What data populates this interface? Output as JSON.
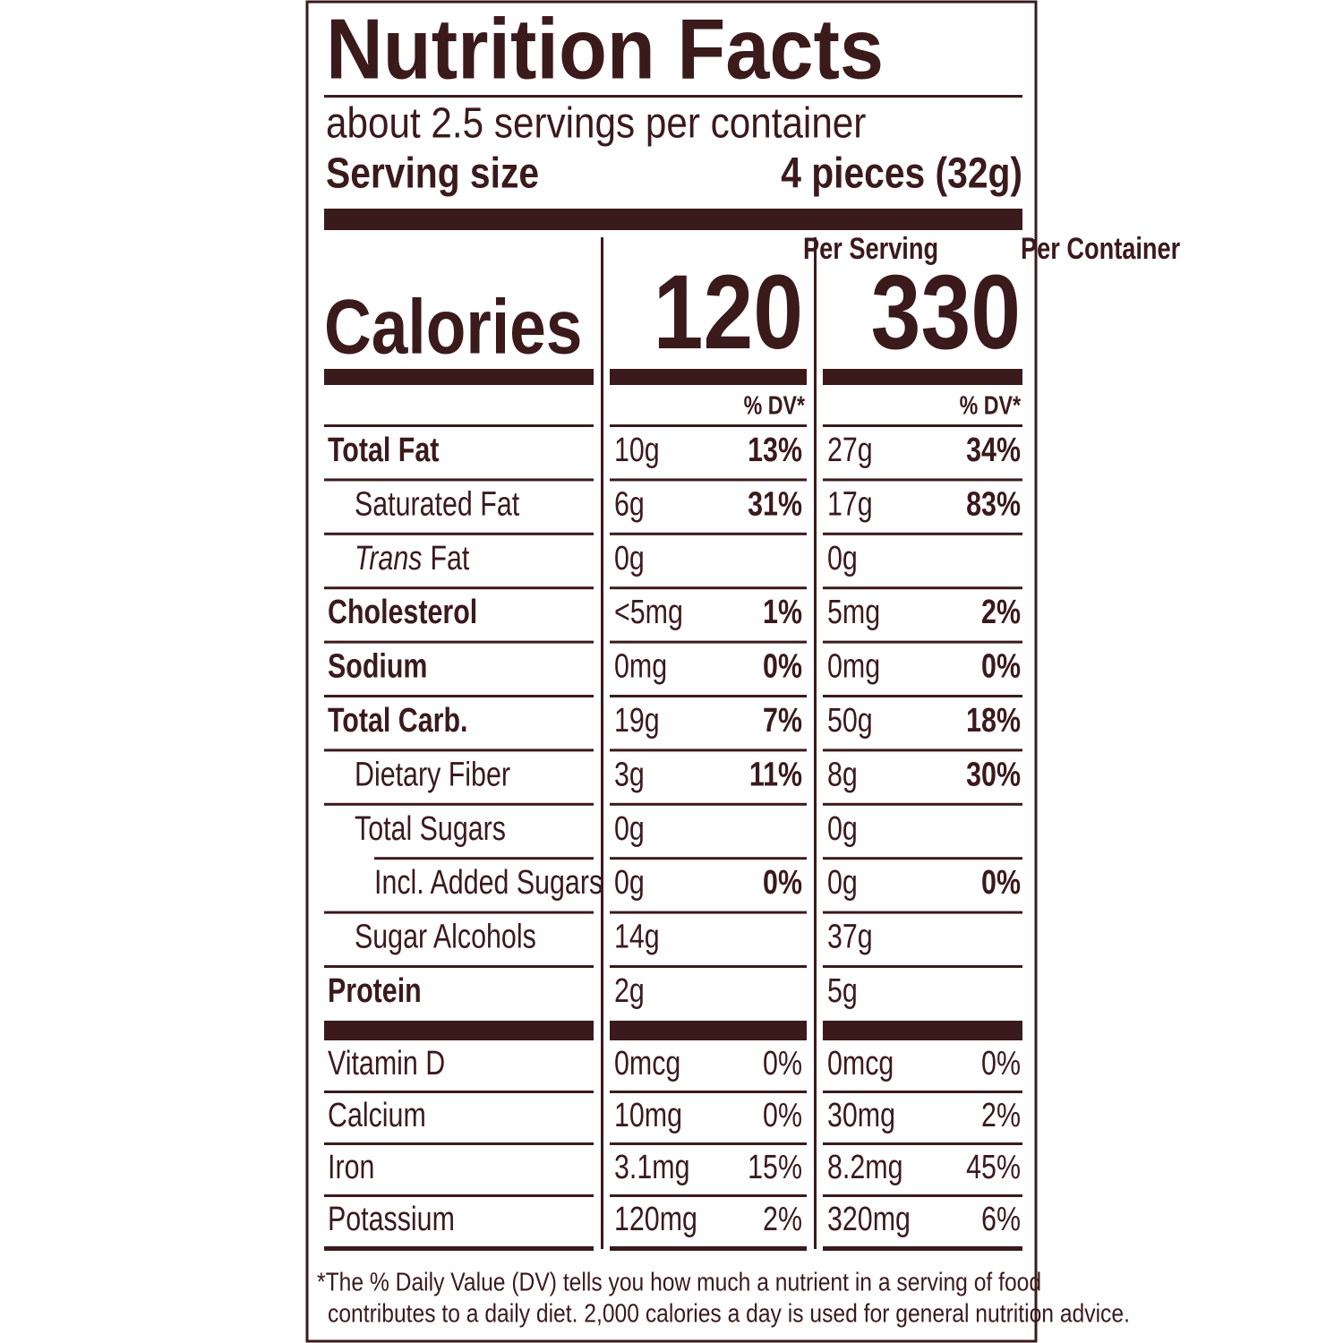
{
  "title": "Nutrition Facts",
  "servings": "about 2.5 servings per container",
  "serving_size_label": "Serving size",
  "serving_size": "4 pieces (32g)",
  "columns": [
    "Per Serving",
    "Per Container"
  ],
  "calories_label": "Calories",
  "calories": [
    "120",
    "330"
  ],
  "dv_header": [
    "% DV*",
    "% DV*"
  ],
  "nutrients": [
    {
      "name": "Total Fat",
      "bold": true,
      "level": 0,
      "serving": {
        "amount": "10g",
        "dv": "13%"
      },
      "container": {
        "amount": "27g",
        "dv": "34%"
      }
    },
    {
      "name": "Saturated Fat",
      "bold": false,
      "level": 1,
      "serving": {
        "amount": "6g",
        "dv": "31%"
      },
      "container": {
        "amount": "17g",
        "dv": "83%"
      }
    },
    {
      "name_italic": "Trans",
      "name": "Fat",
      "bold": false,
      "level": 1,
      "serving": {
        "amount": "0g",
        "dv": null
      },
      "container": {
        "amount": "0g",
        "dv": null
      }
    },
    {
      "name": "Cholesterol",
      "bold": true,
      "level": 0,
      "serving": {
        "amount": "<5mg",
        "dv": "1%"
      },
      "container": {
        "amount": "5mg",
        "dv": "2%"
      }
    },
    {
      "name": "Sodium",
      "bold": true,
      "level": 0,
      "serving": {
        "amount": "0mg",
        "dv": "0%"
      },
      "container": {
        "amount": "0mg",
        "dv": "0%"
      }
    },
    {
      "name": "Total Carb.",
      "bold": true,
      "level": 0,
      "serving": {
        "amount": "19g",
        "dv": "7%"
      },
      "container": {
        "amount": "50g",
        "dv": "18%"
      }
    },
    {
      "name": "Dietary Fiber",
      "bold": false,
      "level": 1,
      "serving": {
        "amount": "3g",
        "dv": "11%"
      },
      "container": {
        "amount": "8g",
        "dv": "30%"
      }
    },
    {
      "name": "Total Sugars",
      "bold": false,
      "level": 1,
      "serving": {
        "amount": "0g",
        "dv": null
      },
      "container": {
        "amount": "0g",
        "dv": null
      }
    },
    {
      "name": "Incl. Added Sugars",
      "bold": false,
      "level": 2,
      "serving": {
        "amount": "0g",
        "dv": "0%"
      },
      "container": {
        "amount": "0g",
        "dv": "0%"
      }
    },
    {
      "name": "Sugar Alcohols",
      "bold": false,
      "level": 1,
      "serving": {
        "amount": "14g",
        "dv": null
      },
      "container": {
        "amount": "37g",
        "dv": null
      }
    },
    {
      "name": "Protein",
      "bold": true,
      "level": 0,
      "serving": {
        "amount": "2g",
        "dv": null
      },
      "container": {
        "amount": "5g",
        "dv": null
      }
    }
  ],
  "vitamins": [
    {
      "name": "Vitamin D",
      "serving": {
        "amount": "0mcg",
        "dv": "0%"
      },
      "container": {
        "amount": "0mcg",
        "dv": "0%"
      }
    },
    {
      "name": "Calcium",
      "serving": {
        "amount": "10mg",
        "dv": "0%"
      },
      "container": {
        "amount": "30mg",
        "dv": "2%"
      }
    },
    {
      "name": "Iron",
      "serving": {
        "amount": "3.1mg",
        "dv": "15%"
      },
      "container": {
        "amount": "8.2mg",
        "dv": "45%"
      }
    },
    {
      "name": "Potassium",
      "serving": {
        "amount": "120mg",
        "dv": "2%"
      },
      "container": {
        "amount": "320mg",
        "dv": "6%"
      }
    }
  ],
  "footnote": [
    "*The % Daily Value (DV) tells you how much a nutrient in a serving of food",
    "contributes to a daily diet. 2,000 calories a day is used for general nutrition advice."
  ]
}
